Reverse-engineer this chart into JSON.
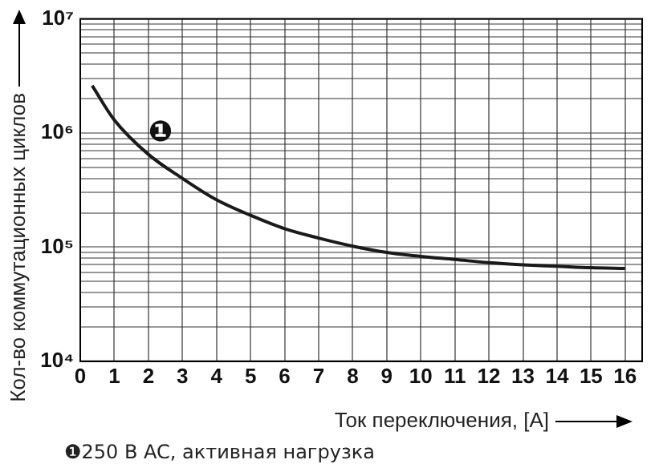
{
  "chart_data": {
    "type": "line",
    "xlabel": "Ток переключения, [А]",
    "ylabel": "Кол-во коммутационных циклов",
    "annotations": [
      "❶",
      "❶250 В AC, активная нагрузка"
    ],
    "x": [
      0.35,
      1,
      2,
      3,
      4,
      5,
      6,
      7,
      8,
      9,
      10,
      11,
      12,
      13,
      14,
      15,
      16
    ],
    "series": [
      {
        "color": "#1a1a1a",
        "values": [
          2600000,
          1300000,
          650000,
          400000,
          260000,
          190000,
          145000,
          120000,
          102000,
          90000,
          83000,
          78000,
          73000,
          70000,
          68000,
          66000,
          65000
        ]
      }
    ],
    "xlim": [
      0,
      16.5
    ],
    "xticks": [
      0,
      1,
      2,
      3,
      4,
      5,
      6,
      7,
      8,
      9,
      10,
      11,
      12,
      13,
      14,
      15,
      16
    ],
    "ylim": [
      10000,
      10000000
    ],
    "log": true,
    "yticks": [
      {
        "value": 10000,
        "label": "10⁴"
      },
      {
        "value": 20000,
        "label": null
      },
      {
        "value": 30000,
        "label": null
      },
      {
        "value": 40000,
        "label": null
      },
      {
        "value": 50000,
        "label": null
      },
      {
        "value": 60000,
        "label": null
      },
      {
        "value": 70000,
        "label": null
      },
      {
        "value": 80000,
        "label": null
      },
      {
        "value": 90000,
        "label": null
      },
      {
        "value": 100000,
        "label": "10⁵"
      },
      {
        "value": 200000,
        "label": null
      },
      {
        "value": 300000,
        "label": null
      },
      {
        "value": 400000,
        "label": null
      },
      {
        "value": 500000,
        "label": null
      },
      {
        "value": 600000,
        "label": null
      },
      {
        "value": 700000,
        "label": null
      },
      {
        "value": 800000,
        "label": null
      },
      {
        "value": 900000,
        "label": null
      },
      {
        "value": 1000000,
        "label": "10⁶"
      },
      {
        "value": 2000000,
        "label": null
      },
      {
        "value": 3000000,
        "label": null
      },
      {
        "value": 4000000,
        "label": null
      },
      {
        "value": 5000000,
        "label": null
      },
      {
        "value": 6000000,
        "label": null
      },
      {
        "value": 7000000,
        "label": null
      },
      {
        "value": 8000000,
        "label": null
      },
      {
        "value": 9000000,
        "label": null
      },
      {
        "value": 10000000,
        "label": "10⁷"
      }
    ],
    "grid": true,
    "legend": false,
    "marker": "none",
    "line_style": "solid"
  }
}
